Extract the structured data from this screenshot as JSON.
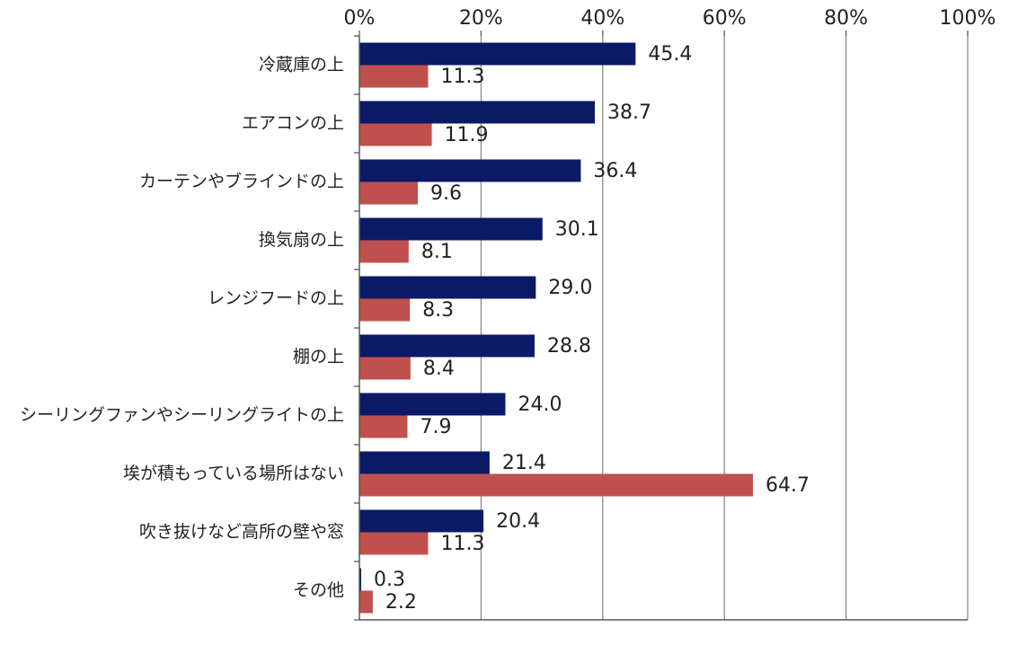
{
  "chart_data": {
    "type": "bar",
    "orientation": "horizontal",
    "title": "",
    "xlabel": "",
    "ylabel": "",
    "xlim": [
      0,
      100
    ],
    "x_ticks": [
      "0%",
      "20%",
      "40%",
      "60%",
      "80%",
      "100%"
    ],
    "grid": true,
    "categories": [
      "冷蔵庫の上",
      "エアコンの上",
      "カーテンやブラインドの上",
      "換気扇の上",
      "レンジフードの上",
      "棚の上",
      "シーリングファンやシーリングライトの上",
      "埃が積もっている場所はない",
      "吹き抜けなど高所の壁や窓",
      "その他"
    ],
    "series": [
      {
        "name": "series-1",
        "color": "#0b1a66",
        "values": [
          45.4,
          38.7,
          36.4,
          30.1,
          29.0,
          28.8,
          24.0,
          21.4,
          20.4,
          0.3
        ],
        "labels": [
          "45.4",
          "38.7",
          "36.4",
          "30.1",
          "29.0",
          "28.8",
          "24.0",
          "21.4",
          "20.4",
          "0.3"
        ]
      },
      {
        "name": "series-2",
        "color": "#c0504d",
        "values": [
          11.3,
          11.9,
          9.6,
          8.1,
          8.3,
          8.4,
          7.9,
          64.7,
          11.3,
          2.2
        ],
        "labels": [
          "11.3",
          "11.9",
          "9.6",
          "8.1",
          "8.3",
          "8.4",
          "7.9",
          "64.7",
          "11.3",
          "2.2"
        ]
      }
    ]
  }
}
